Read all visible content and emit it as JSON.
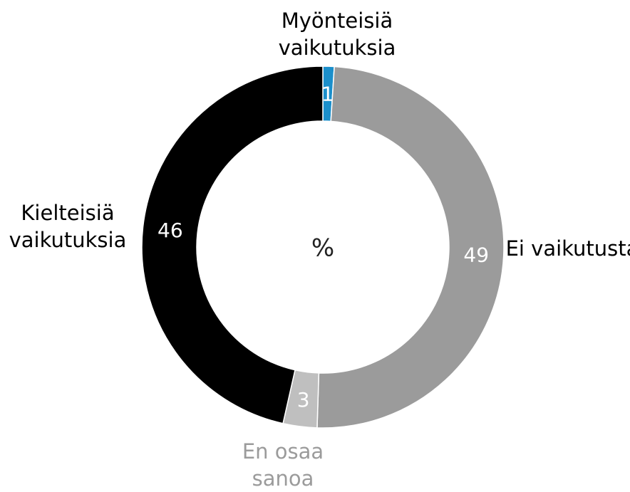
{
  "chart_data": {
    "type": "donut",
    "categories": [
      "Myönteisiä vaikutuksia",
      "Ei vaikutusta",
      "En osaa sanoa",
      "Kielteisiä vaikutuksia"
    ],
    "values": [
      1,
      49,
      3,
      46
    ],
    "colors": [
      "#1b8fcb",
      "#9b9b9b",
      "#bfbfbf",
      "#000000"
    ],
    "label_colors": [
      "#000000",
      "#000000",
      "#9b9b9b",
      "#000000"
    ],
    "center_label": "%"
  }
}
